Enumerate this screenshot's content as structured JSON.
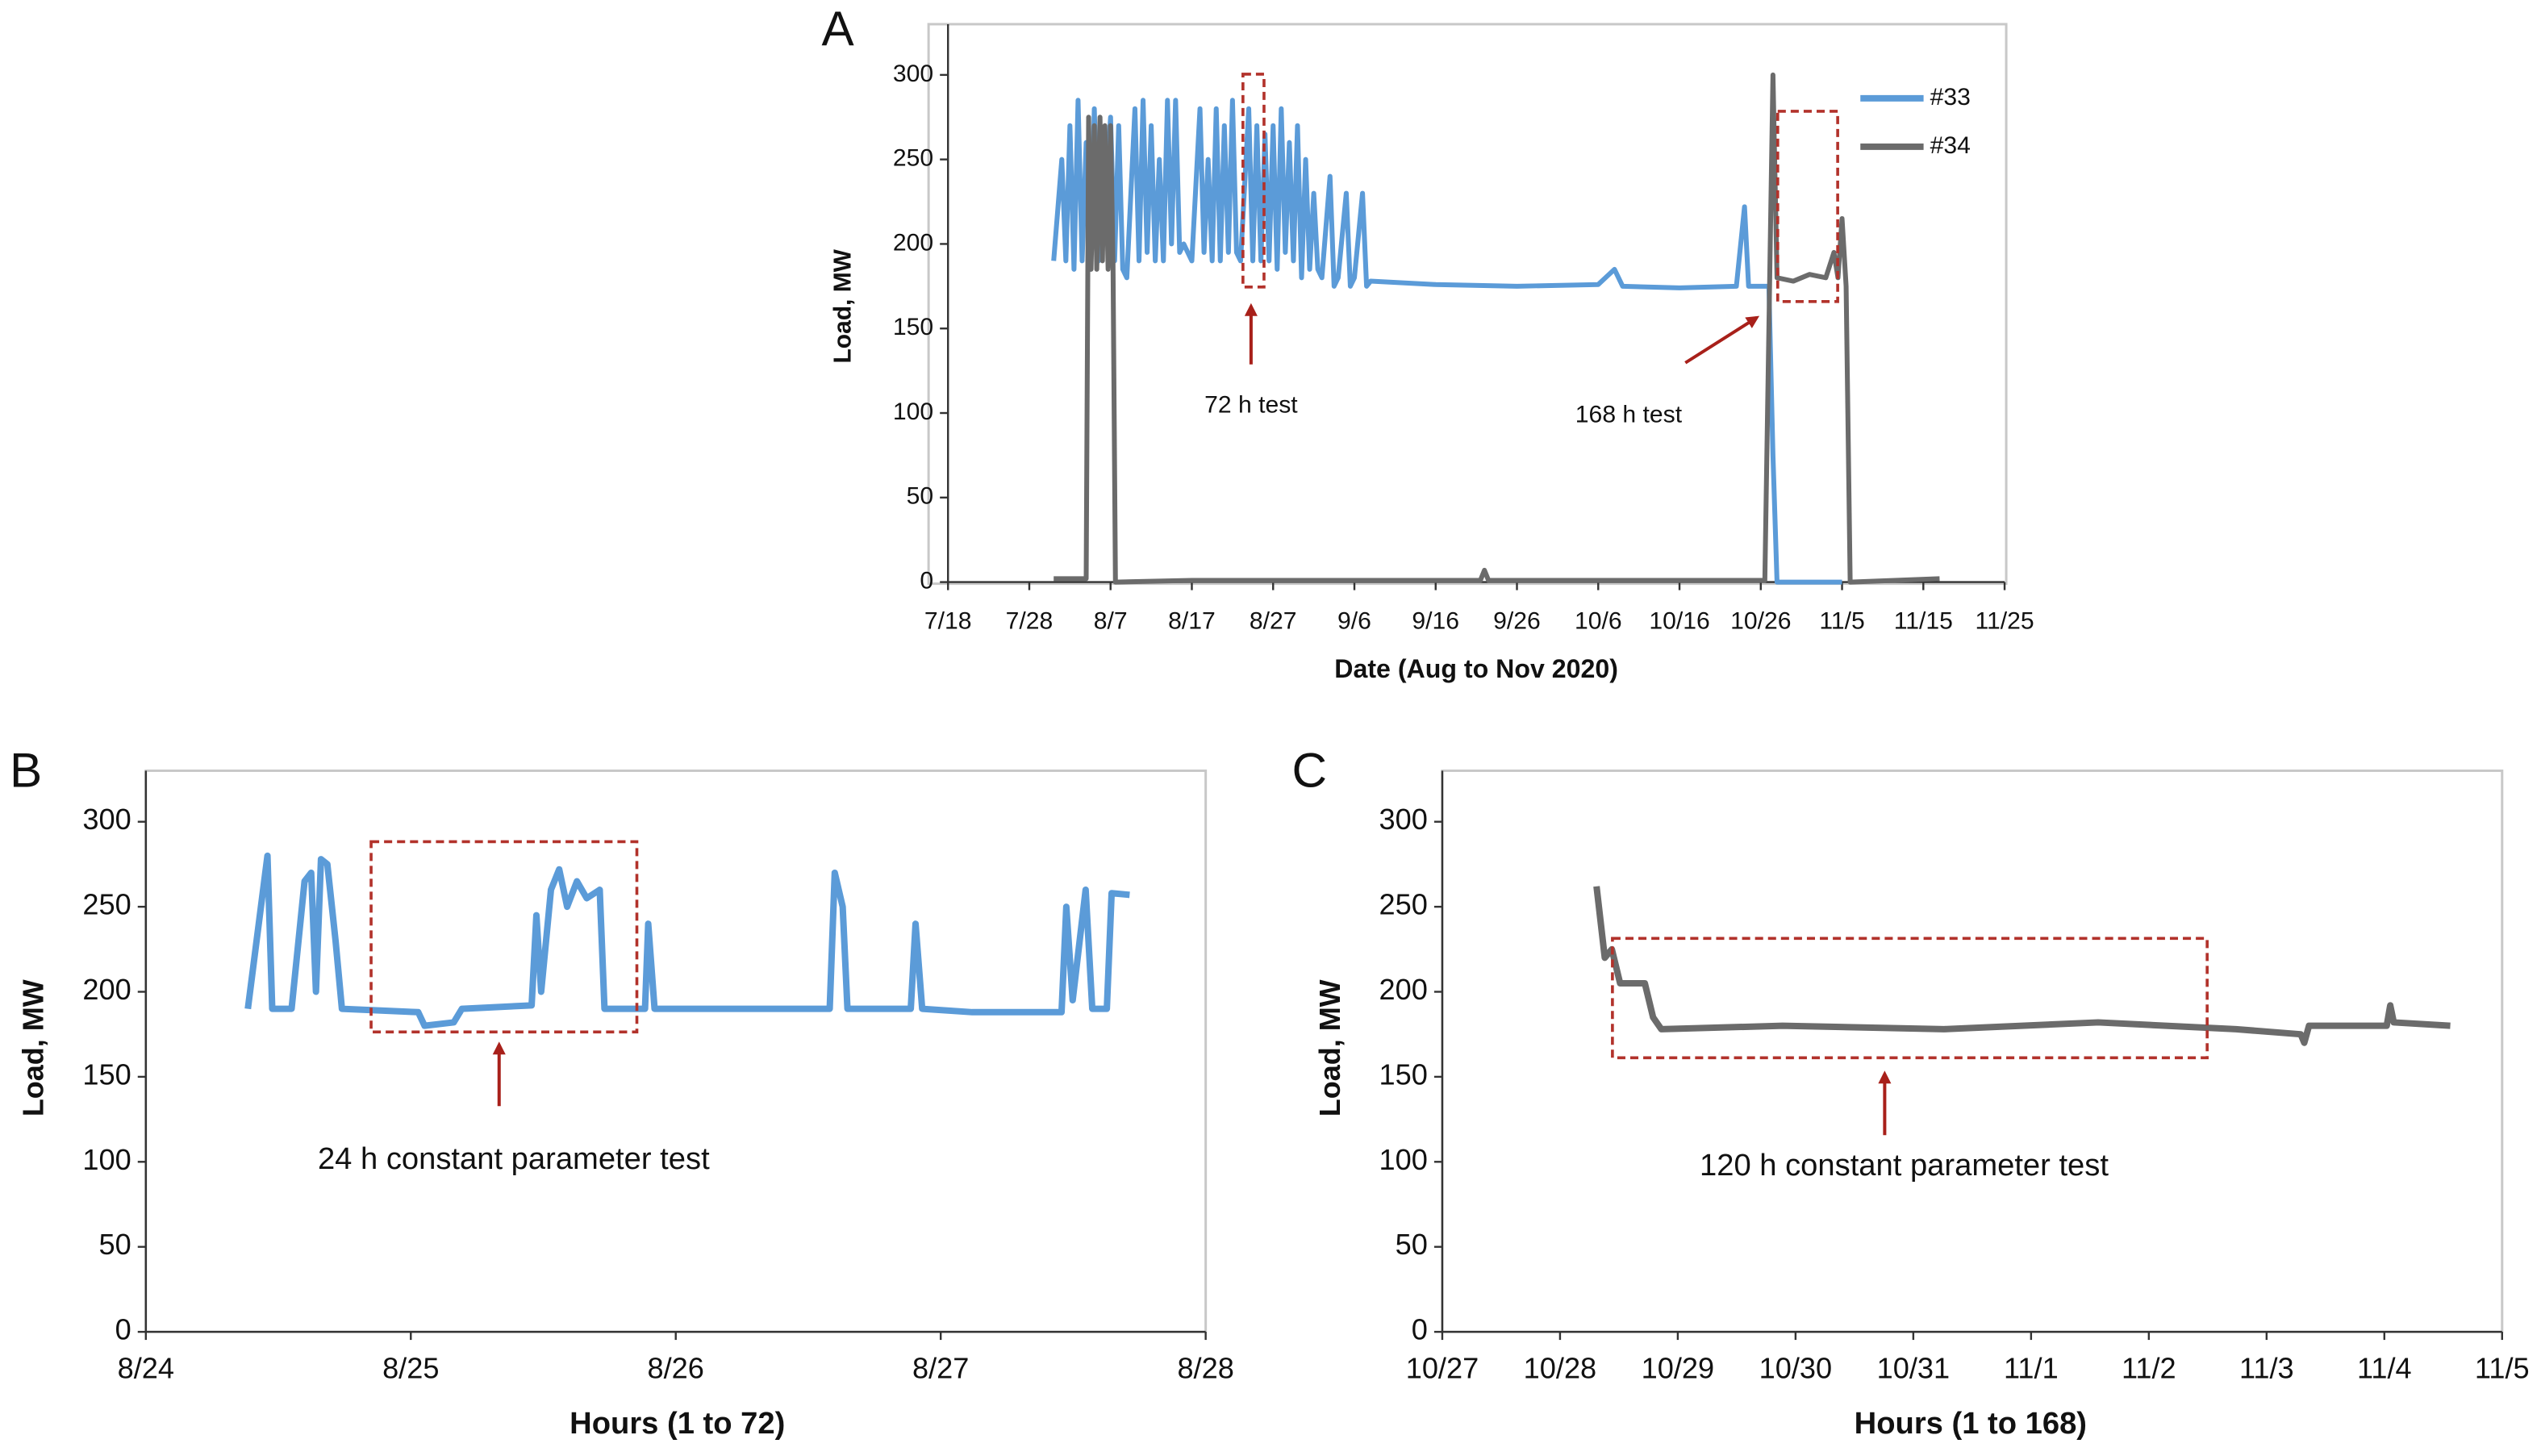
{
  "chart_data": [
    {
      "type": "line",
      "label": "A",
      "y_label": "Load, MW",
      "x_label": "Date (Aug to Nov 2020)",
      "xlim": [
        200,
        330
      ],
      "xticks": [
        {
          "value": 200,
          "label": "7/18"
        },
        {
          "value": 210,
          "label": "7/28"
        },
        {
          "value": 220,
          "label": "8/7"
        },
        {
          "value": 230,
          "label": "8/17"
        },
        {
          "value": 240,
          "label": "8/27"
        },
        {
          "value": 250,
          "label": "9/6"
        },
        {
          "value": 260,
          "label": "9/16"
        },
        {
          "value": 270,
          "label": "9/26"
        },
        {
          "value": 280,
          "label": "10/6"
        },
        {
          "value": 290,
          "label": "10/16"
        },
        {
          "value": 300,
          "label": "10/26"
        },
        {
          "value": 310,
          "label": "11/5"
        },
        {
          "value": 320,
          "label": "11/15"
        },
        {
          "value": 330,
          "label": "11/25"
        }
      ],
      "ylim": [
        0,
        330
      ],
      "yticks": [
        0,
        50,
        100,
        150,
        200,
        250,
        300
      ],
      "annotations": [
        "72 h test",
        "168 h test"
      ],
      "series": [
        {
          "name": "#33",
          "color": "#5b9bd8",
          "x": [
            213,
            214,
            214.5,
            215,
            215.5,
            216,
            216.5,
            217,
            217.5,
            218,
            218.5,
            219,
            220,
            220.5,
            221,
            221.5,
            222,
            223,
            223.5,
            224,
            224.5,
            225,
            225.5,
            226,
            226.5,
            227,
            227.5,
            228,
            228.5,
            229,
            230,
            231,
            231.5,
            232,
            232.5,
            233,
            233.5,
            234,
            234.5,
            235,
            235.5,
            236,
            237,
            237.5,
            238,
            238.5,
            239,
            239.5,
            240,
            240.5,
            241,
            241.5,
            242,
            242.5,
            243,
            243.5,
            244,
            244.5,
            245,
            245.5,
            246,
            247,
            247.5,
            248,
            249,
            249.5,
            250,
            251,
            251.5,
            252,
            260,
            270,
            280,
            282,
            283,
            290,
            297,
            298,
            298.5,
            301,
            301.5,
            302,
            310
          ],
          "values": [
            190,
            250,
            190,
            270,
            185,
            285,
            190,
            260,
            185,
            280,
            190,
            200,
            275,
            190,
            270,
            185,
            180,
            280,
            190,
            285,
            195,
            270,
            190,
            250,
            190,
            285,
            200,
            285,
            195,
            200,
            190,
            280,
            195,
            250,
            190,
            280,
            190,
            270,
            195,
            285,
            195,
            190,
            280,
            190,
            270,
            190,
            265,
            190,
            270,
            185,
            280,
            195,
            260,
            190,
            270,
            180,
            250,
            185,
            230,
            185,
            180,
            240,
            175,
            180,
            230,
            175,
            180,
            230,
            175,
            178,
            176,
            175,
            176,
            185,
            175,
            174,
            175,
            222,
            175,
            175,
            75,
            0,
            0
          ]
        },
        {
          "name": "#34",
          "color": "#6b6b6b",
          "x": [
            213,
            217,
            217.3,
            217.6,
            218,
            218.3,
            218.7,
            219,
            219.3,
            219.7,
            220,
            220.3,
            220.6,
            230,
            250,
            265.5,
            266,
            266.5,
            280,
            300.5,
            301,
            301.5,
            302,
            304,
            306,
            308,
            309,
            309.5,
            310,
            310.5,
            311,
            322
          ],
          "values": [
            2,
            2,
            275,
            185,
            270,
            185,
            275,
            190,
            270,
            185,
            270,
            190,
            0,
            1,
            1,
            1,
            7,
            1,
            1,
            1,
            150,
            300,
            180,
            178,
            182,
            180,
            195,
            180,
            215,
            175,
            0,
            2
          ]
        }
      ]
    },
    {
      "type": "line",
      "label": "B",
      "y_label": "Load, MW",
      "x_label": "Hours (1 to 72)",
      "xlim": [
        237,
        241
      ],
      "xticks": [
        {
          "value": 237,
          "label": "8/24"
        },
        {
          "value": 238,
          "label": "8/25"
        },
        {
          "value": 239,
          "label": "8/26"
        },
        {
          "value": 240,
          "label": "8/27"
        },
        {
          "value": 241,
          "label": "8/28"
        }
      ],
      "ylim": [
        0,
        330
      ],
      "yticks": [
        0,
        50,
        100,
        150,
        200,
        250,
        300
      ],
      "annotations": [
        "24 h constant parameter test"
      ],
      "series": [
        {
          "color": "#5b9bd8",
          "x": [
            237.385,
            237.459,
            237.477,
            237.55,
            237.599,
            237.624,
            237.642,
            237.661,
            237.685,
            237.716,
            237.74,
            238.028,
            238.052,
            238.162,
            238.193,
            238.456,
            238.474,
            238.492,
            238.529,
            238.56,
            238.59,
            238.627,
            238.664,
            238.713,
            238.731,
            238.884,
            238.896,
            238.92,
            239.581,
            239.6,
            239.63,
            239.648,
            239.887,
            239.905,
            239.93,
            240.119,
            240.456,
            240.474,
            240.498,
            240.547,
            240.572,
            240.627,
            240.645,
            240.713
          ],
          "values": [
            190,
            280,
            190,
            190,
            265,
            270,
            200,
            278,
            275,
            230,
            190,
            188,
            180,
            182,
            190,
            192,
            245,
            200,
            260,
            272,
            250,
            265,
            255,
            260,
            190,
            190,
            240,
            190,
            190,
            270,
            250,
            190,
            190,
            240,
            190,
            188,
            188,
            250,
            195,
            260,
            190,
            190,
            258,
            257
          ]
        }
      ]
    },
    {
      "type": "line",
      "label": "C",
      "y_label": "Load, MW",
      "x_label": "Hours (1 to 168)",
      "xlim": [
        301,
        310
      ],
      "xticks": [
        {
          "value": 301,
          "label": "10/27"
        },
        {
          "value": 302,
          "label": "10/28"
        },
        {
          "value": 303,
          "label": "10/29"
        },
        {
          "value": 304,
          "label": "10/30"
        },
        {
          "value": 305,
          "label": "10/31"
        },
        {
          "value": 306,
          "label": "11/1"
        },
        {
          "value": 307,
          "label": "11/2"
        },
        {
          "value": 308,
          "label": "11/3"
        },
        {
          "value": 309,
          "label": "11/4"
        },
        {
          "value": 310,
          "label": "11/5"
        }
      ],
      "ylim": [
        0,
        330
      ],
      "yticks": [
        0,
        50,
        100,
        150,
        200,
        250,
        300
      ],
      "annotations": [
        "120 h constant parameter test"
      ],
      "series": [
        {
          "color": "#6b6b6b",
          "x": [
            302.31,
            302.38,
            302.44,
            302.51,
            302.72,
            302.79,
            302.86,
            303.89,
            305.26,
            306.57,
            307.74,
            308.29,
            308.32,
            308.36,
            309.02,
            309.05,
            309.08,
            309.56
          ],
          "values": [
            262,
            220,
            225,
            205,
            205,
            185,
            178,
            180,
            178,
            182,
            178,
            175,
            170,
            180,
            180,
            192,
            182,
            180
          ]
        }
      ]
    }
  ]
}
